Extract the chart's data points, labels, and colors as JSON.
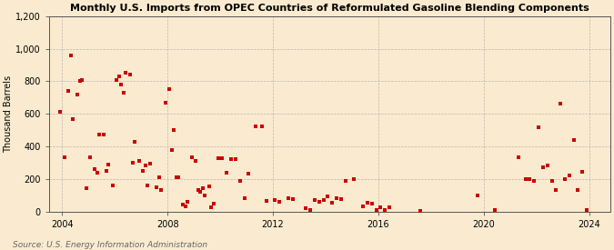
{
  "title": "Monthly U.S. Imports from OPEC Countries of Reformulated Gasoline Blending Components",
  "ylabel": "Thousand Barrels",
  "source": "Source: U.S. Energy Information Administration",
  "background_color": "#faebd0",
  "plot_bg_color": "#faebd0",
  "marker_color": "#cc0000",
  "marker_size": 8,
  "ylim": [
    0,
    1200
  ],
  "yticks": [
    0,
    200,
    400,
    600,
    800,
    1000,
    1200
  ],
  "ytick_labels": [
    "0",
    "200",
    "400",
    "600",
    "800",
    "1,000",
    "1,200"
  ],
  "xticks": [
    2004,
    2008,
    2012,
    2016,
    2020,
    2024
  ],
  "xlim": [
    2003.5,
    2024.8
  ],
  "grid_color": "#aaaaaa",
  "x": [
    2003.92,
    2004.08,
    2004.25,
    2004.33,
    2004.42,
    2004.58,
    2004.67,
    2004.75,
    2004.92,
    2005.08,
    2005.25,
    2005.33,
    2005.42,
    2005.58,
    2005.67,
    2005.75,
    2005.92,
    2006.08,
    2006.17,
    2006.25,
    2006.33,
    2006.42,
    2006.58,
    2006.67,
    2006.75,
    2006.92,
    2007.08,
    2007.17,
    2007.25,
    2007.33,
    2007.58,
    2007.67,
    2007.75,
    2007.92,
    2008.08,
    2008.17,
    2008.25,
    2008.33,
    2008.42,
    2008.58,
    2008.67,
    2008.75,
    2008.92,
    2009.08,
    2009.17,
    2009.25,
    2009.33,
    2009.42,
    2009.58,
    2009.67,
    2009.75,
    2009.92,
    2010.08,
    2010.25,
    2010.42,
    2010.58,
    2010.75,
    2010.92,
    2011.08,
    2011.33,
    2011.58,
    2011.75,
    2012.08,
    2012.25,
    2012.58,
    2012.75,
    2013.25,
    2013.42,
    2013.58,
    2013.75,
    2013.92,
    2014.08,
    2014.25,
    2014.42,
    2014.58,
    2014.75,
    2015.08,
    2015.42,
    2015.58,
    2015.75,
    2015.92,
    2016.08,
    2016.25,
    2016.42,
    2017.58,
    2019.75,
    2020.42,
    2021.33,
    2021.58,
    2021.75,
    2021.92,
    2022.08,
    2022.25,
    2022.42,
    2022.58,
    2022.75,
    2022.92,
    2023.08,
    2023.25,
    2023.42,
    2023.58,
    2023.75,
    2023.92
  ],
  "y": [
    610,
    330,
    740,
    960,
    570,
    720,
    800,
    810,
    140,
    330,
    260,
    240,
    470,
    470,
    250,
    290,
    160,
    810,
    830,
    780,
    730,
    850,
    840,
    300,
    430,
    310,
    250,
    280,
    160,
    295,
    150,
    210,
    130,
    670,
    750,
    380,
    500,
    210,
    210,
    40,
    30,
    60,
    330,
    310,
    130,
    120,
    140,
    100,
    155,
    25,
    50,
    325,
    325,
    240,
    320,
    320,
    185,
    80,
    230,
    520,
    525,
    65,
    70,
    60,
    80,
    75,
    20,
    10,
    70,
    60,
    70,
    90,
    55,
    80,
    75,
    190,
    200,
    30,
    55,
    50,
    10,
    25,
    10,
    25,
    5,
    100,
    10,
    330,
    200,
    200,
    190,
    515,
    270,
    280,
    190,
    130,
    660,
    200,
    220,
    440,
    130,
    245,
    10
  ]
}
